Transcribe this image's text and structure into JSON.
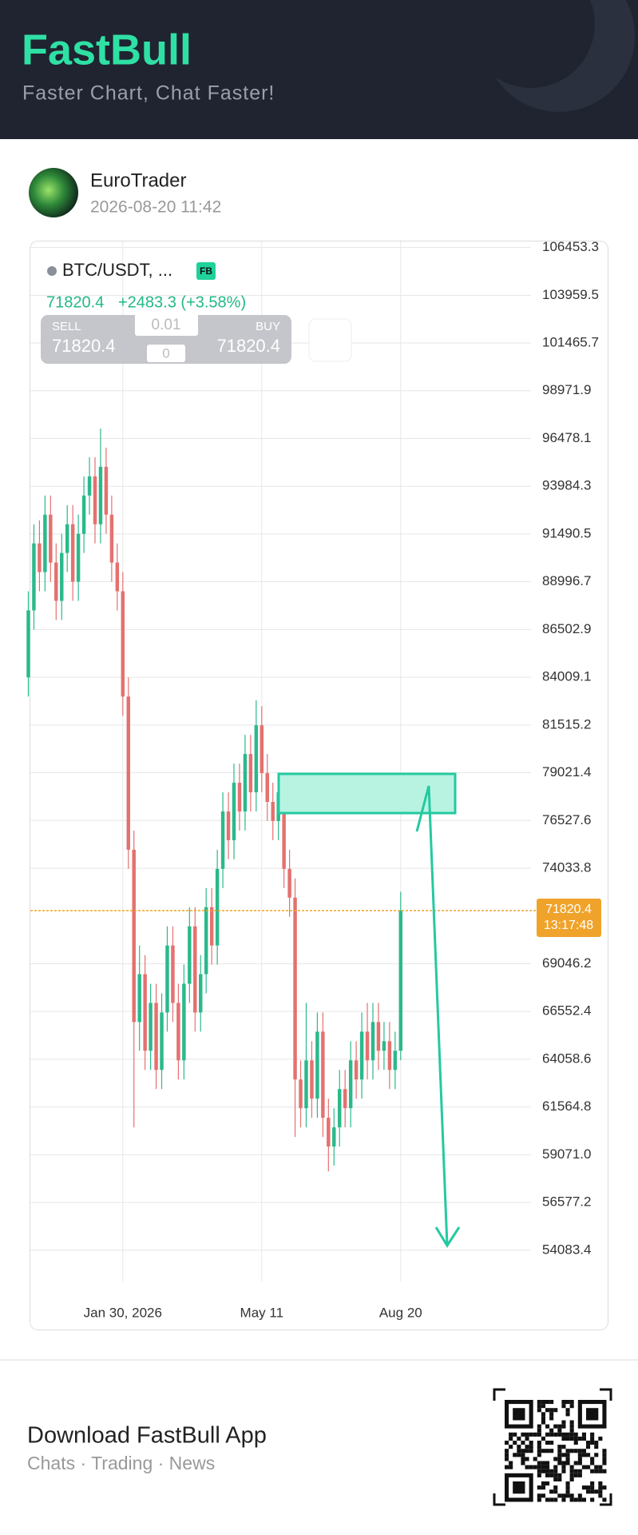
{
  "header": {
    "title": "FastBull",
    "subtitle": "Faster Chart, Chat Faster!"
  },
  "post": {
    "author": "EuroTrader",
    "time": "2026-08-20 11:42"
  },
  "quote": {
    "symbol": "BTC/USDT, ...",
    "badge": "FB",
    "price": 71820.4,
    "change": "+2483.3 (+3.58%)",
    "sell_label": "SELL",
    "sell": 71820.4,
    "buy_label": "BUY",
    "buy": 71820.4,
    "lot": 0.01,
    "count": 0
  },
  "chart_data": {
    "type": "candlestick",
    "categories": [
      null,
      null,
      null,
      null,
      null,
      null,
      null,
      null,
      null,
      null,
      null,
      null,
      null,
      null,
      null,
      null,
      null,
      "Jan 30, 2026",
      null,
      null,
      null,
      null,
      null,
      null,
      null,
      null,
      null,
      null,
      null,
      null,
      null,
      null,
      null,
      null,
      null,
      null,
      null,
      null,
      null,
      null,
      null,
      null,
      "May 11",
      null,
      null,
      null,
      null,
      null,
      null,
      null,
      null,
      null,
      null,
      null,
      null,
      null,
      null,
      null,
      null,
      null,
      null,
      null,
      null,
      null,
      null,
      null,
      null,
      "Aug 20"
    ],
    "open": [
      84000,
      87500,
      91000,
      89500,
      92500,
      90000,
      88000,
      90500,
      92000,
      89000,
      91500,
      93500,
      94500,
      92000,
      95000,
      92500,
      90000,
      88500,
      83000,
      75000,
      66000,
      68500,
      64500,
      67000,
      63500,
      66500,
      70000,
      67000,
      64000,
      68000,
      71000,
      66500,
      68500,
      72000,
      70000,
      74000,
      77000,
      75500,
      78500,
      77000,
      80000,
      78000,
      81500,
      79000,
      77500,
      76500,
      78000,
      74000,
      72500,
      63000,
      61500,
      64000,
      62000,
      65500,
      61000,
      59500,
      60500,
      62500,
      61500,
      64000,
      63000,
      65500,
      64000,
      66000,
      64500,
      65000,
      63500,
      64500
    ],
    "high": [
      88500,
      92000,
      92200,
      93500,
      93500,
      91000,
      91500,
      93000,
      93000,
      92500,
      94500,
      95500,
      95500,
      97000,
      96000,
      93500,
      91000,
      89500,
      84000,
      76000,
      70000,
      69500,
      68000,
      68000,
      67500,
      71000,
      71000,
      68000,
      69000,
      72000,
      72000,
      69500,
      73000,
      73000,
      75000,
      78000,
      78000,
      79500,
      79500,
      81000,
      81000,
      82800,
      82500,
      80000,
      78500,
      79000,
      79000,
      75000,
      73500,
      64000,
      67000,
      65000,
      66500,
      66500,
      62000,
      61500,
      63500,
      63500,
      65000,
      65000,
      66500,
      67000,
      67000,
      67000,
      66000,
      66000,
      65500,
      72800
    ],
    "low": [
      83000,
      86500,
      88500,
      88500,
      89000,
      87000,
      87000,
      89500,
      88000,
      88000,
      90500,
      92500,
      91000,
      91000,
      91500,
      89000,
      87500,
      82000,
      74000,
      60500,
      64500,
      63500,
      63500,
      62500,
      62500,
      65500,
      66000,
      63000,
      63000,
      67000,
      65500,
      65500,
      67500,
      69000,
      69000,
      73000,
      74500,
      74500,
      76000,
      76000,
      77000,
      77000,
      78000,
      76500,
      75500,
      75500,
      73000,
      71500,
      60000,
      60500,
      60500,
      61000,
      61000,
      60000,
      58200,
      58500,
      59500,
      60500,
      60500,
      62000,
      62000,
      63000,
      63000,
      63500,
      63500,
      62500,
      62500,
      64000
    ],
    "close": [
      87500,
      91000,
      89500,
      92500,
      90000,
      88000,
      90500,
      92000,
      89000,
      91500,
      93500,
      94500,
      92000,
      95000,
      92500,
      90000,
      88500,
      83000,
      75000,
      66000,
      68500,
      64500,
      67000,
      63500,
      66500,
      70000,
      67000,
      64000,
      68000,
      71000,
      66500,
      68500,
      72000,
      70000,
      74000,
      77000,
      75500,
      78500,
      77000,
      80000,
      78000,
      81500,
      79000,
      77500,
      76500,
      78000,
      74000,
      72500,
      63000,
      61500,
      64000,
      62000,
      65500,
      61000,
      59500,
      60500,
      62500,
      61500,
      64000,
      63000,
      65500,
      64000,
      66000,
      64500,
      65000,
      63500,
      64500,
      71820.4
    ],
    "up_color": "#2bb98b",
    "down_color": "#e4716f",
    "ylim": [
      52446,
      106812
    ],
    "yticks": [
      106453.3,
      103959.5,
      101465.7,
      98971.9,
      96478.1,
      93984.3,
      91490.5,
      88996.7,
      86502.9,
      84009.1,
      81515.2,
      79021.4,
      76527.6,
      74033.8,
      69046.2,
      66552.4,
      64058.6,
      61564.8,
      {
        "value": 59071,
        "label": "59071.0"
      },
      56577.2,
      54083.4
    ],
    "grid": true,
    "last_price": 71820.4,
    "countdown": "13:17:48",
    "last_color": "#f0a32b"
  },
  "footer": {
    "title": "Download FastBull App",
    "subtitle": "Chats · Trading · News"
  }
}
